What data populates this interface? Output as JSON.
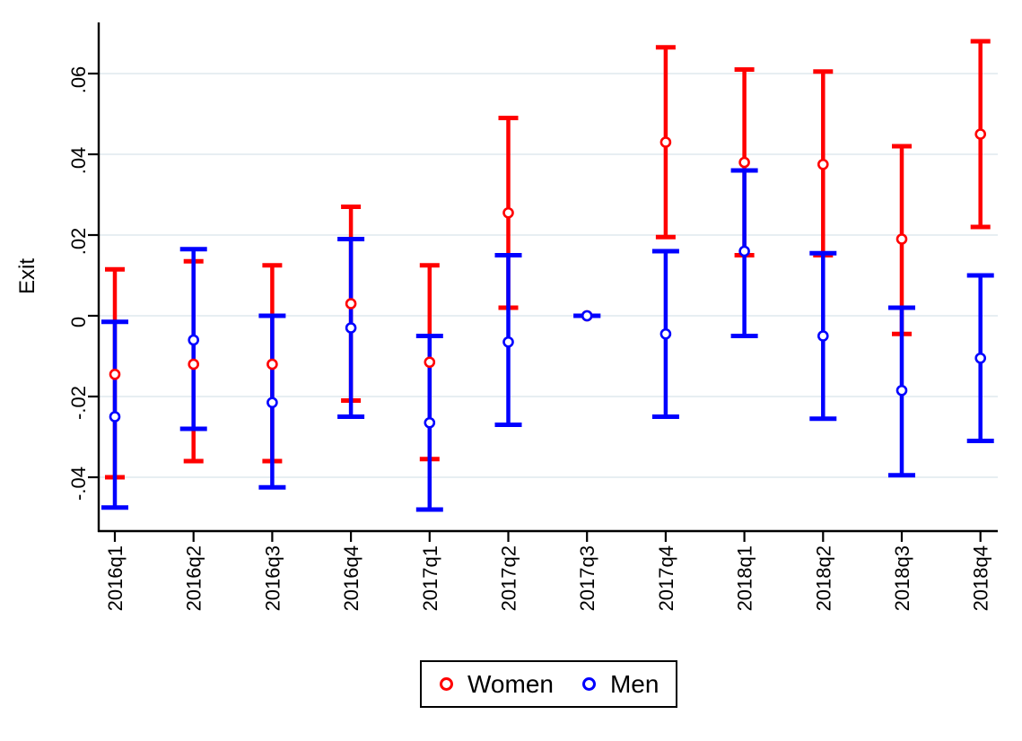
{
  "figure": {
    "background_color": "#ffffff",
    "axis_color": "#000000",
    "gridline_color": "#e7eef2"
  },
  "chart_data": {
    "type": "scatter",
    "subtype": "coefficient-plot-with-95ci-errorbars",
    "title": "",
    "xlabel": "",
    "ylabel": "Exit",
    "grid": true,
    "legend_position": "bottom-center",
    "ylim": [
      -0.053,
      0.073
    ],
    "y_ticks": {
      "values": [
        0.06,
        0.04,
        0.02,
        0,
        -0.02,
        -0.04
      ],
      "labels": [
        ".06",
        ".04",
        ".02",
        "0",
        "-.02",
        "-.04"
      ]
    },
    "categories": [
      "2016q1",
      "2016q2",
      "2016q3",
      "2016q4",
      "2017q1",
      "2017q2",
      "2017q3",
      "2017q4",
      "2018q1",
      "2018q2",
      "2018q3",
      "2018q4"
    ],
    "reference_category": "2017q3",
    "series": [
      {
        "name": "Women",
        "color": "#ff0000",
        "marker": "open-circle",
        "estimates": [
          -0.0145,
          -0.012,
          -0.012,
          0.003,
          -0.0115,
          0.0255,
          0,
          0.043,
          0.038,
          0.0375,
          0.019,
          0.045
        ],
        "ci_low": [
          -0.04,
          -0.036,
          -0.036,
          -0.021,
          -0.0355,
          0.002,
          0,
          0.0195,
          0.015,
          0.015,
          -0.0045,
          0.022
        ],
        "ci_high": [
          0.0115,
          0.0135,
          0.0125,
          0.027,
          0.0125,
          0.049,
          0,
          0.0665,
          0.061,
          0.0605,
          0.042,
          0.068
        ]
      },
      {
        "name": "Men",
        "color": "#0000ff",
        "marker": "open-circle",
        "estimates": [
          -0.025,
          -0.006,
          -0.0215,
          -0.003,
          -0.0265,
          -0.0065,
          0,
          -0.0045,
          0.016,
          -0.005,
          -0.0185,
          -0.0105
        ],
        "ci_low": [
          -0.0475,
          -0.028,
          -0.0425,
          -0.025,
          -0.048,
          -0.027,
          0,
          -0.025,
          -0.005,
          -0.0255,
          -0.0395,
          -0.031
        ],
        "ci_high": [
          -0.0015,
          0.0165,
          0.0,
          0.019,
          -0.005,
          0.015,
          0,
          0.016,
          0.036,
          0.0155,
          0.002,
          0.01
        ]
      }
    ]
  }
}
